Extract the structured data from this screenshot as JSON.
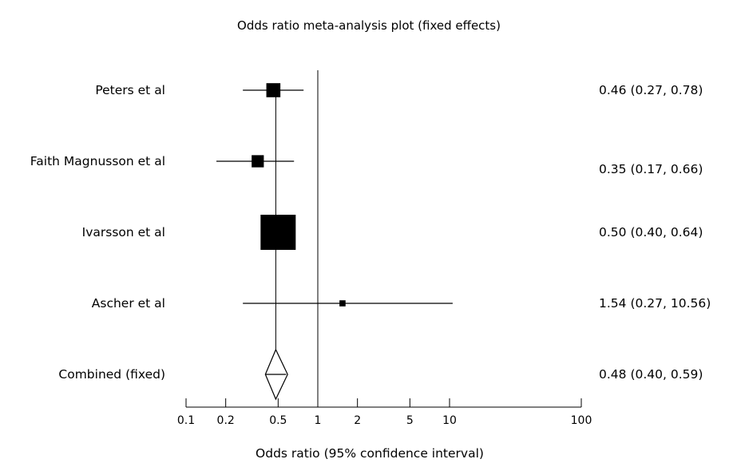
{
  "chart_data": {
    "type": "forest",
    "title": "Odds ratio meta-analysis plot (fixed effects)",
    "xlabel": "Odds ratio (95% confidence interval)",
    "x_scale": "log",
    "xlim": [
      0.1,
      100
    ],
    "x_ticks": [
      0.1,
      0.2,
      0.5,
      1,
      2,
      5,
      10,
      100
    ],
    "x_tick_labels": [
      "0.1",
      "0.2",
      "0.5",
      "1",
      "2",
      "5",
      "10",
      "100"
    ],
    "reference_line": 1,
    "studies": [
      {
        "name": "Peters et al",
        "or": 0.46,
        "lower": 0.27,
        "upper": 0.78,
        "weight": 0.16,
        "ci_label": "0.46 (0.27, 0.78)"
      },
      {
        "name": "Faith Magnusson et al",
        "or": 0.35,
        "lower": 0.17,
        "upper": 0.66,
        "weight": 0.12,
        "ci_label": "0.35 (0.17, 0.66)"
      },
      {
        "name": "Ivarsson et al",
        "or": 0.5,
        "lower": 0.4,
        "upper": 0.64,
        "weight": 1.0,
        "ci_label": "0.50 (0.40, 0.64)"
      },
      {
        "name": "Ascher et al",
        "or": 1.54,
        "lower": 0.27,
        "upper": 10.56,
        "weight": 0.03,
        "ci_label": "1.54 (0.27, 10.56)"
      }
    ],
    "combined": {
      "name": "Combined (fixed)",
      "or": 0.48,
      "lower": 0.4,
      "upper": 0.59,
      "ci_label": "0.48 (0.40, 0.59)"
    }
  }
}
